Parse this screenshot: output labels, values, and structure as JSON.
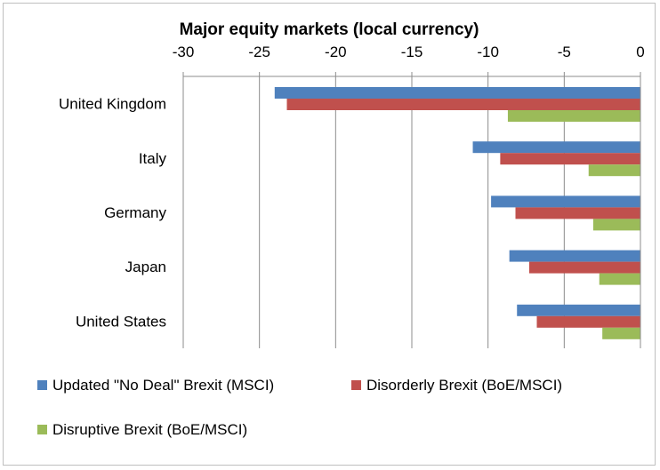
{
  "chart_data": {
    "type": "bar",
    "orientation": "horizontal",
    "title": "Major equity markets (local currency)",
    "xlabel": "",
    "ylabel": "",
    "xlim": [
      -30,
      0
    ],
    "x_ticks": [
      -30,
      -25,
      -20,
      -15,
      -10,
      -5,
      0
    ],
    "x_axis_position": "top",
    "grid": "vertical major gridlines",
    "categories": [
      "United Kingdom",
      "Italy",
      "Germany",
      "Japan",
      "United States"
    ],
    "series": [
      {
        "name": "Updated \"No Deal\" Brexit (MSCI)",
        "color": "#4f81bd",
        "values": [
          -24.0,
          -11.0,
          -9.8,
          -8.6,
          -8.1
        ]
      },
      {
        "name": "Disorderly Brexit (BoE/MSCI)",
        "color": "#c0504d",
        "values": [
          -23.2,
          -9.2,
          -8.2,
          -7.3,
          -6.8
        ]
      },
      {
        "name": "Disruptive Brexit (BoE/MSCI)",
        "color": "#9bbb59",
        "values": [
          -8.7,
          -3.4,
          -3.1,
          -2.7,
          -2.5
        ]
      }
    ],
    "legend": "bottom"
  }
}
